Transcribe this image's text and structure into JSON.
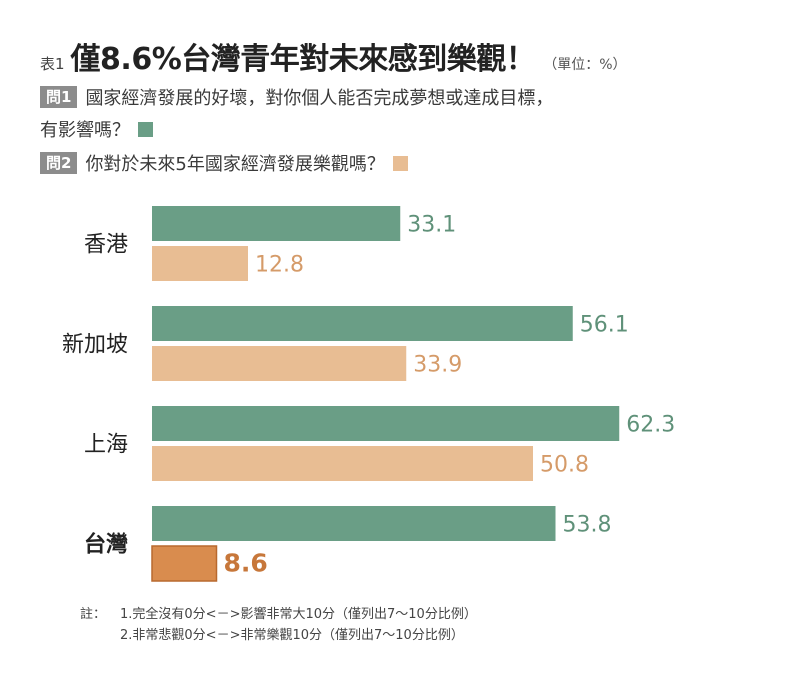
{
  "header": {
    "table_label": "表1",
    "title": "僅8.6%台灣青年對未來感到樂觀！",
    "unit": "（單位：%）"
  },
  "questions": [
    {
      "badge": "問1",
      "lines": [
        "國家經濟發展的好壞，對你個人能否完成夢想或達成目標，",
        "有影響嗎？"
      ],
      "color": "#6a9e86"
    },
    {
      "badge": "問2",
      "lines": [
        "你對於未來5年國家經濟發展樂觀嗎？"
      ],
      "color": "#e8bd93"
    }
  ],
  "chart_data": {
    "type": "bar",
    "orientation": "horizontal",
    "categories": [
      "香港",
      "新加坡",
      "上海",
      "台灣"
    ],
    "series": [
      {
        "name": "問1",
        "values": [
          33.1,
          56.1,
          62.3,
          53.8
        ],
        "color": "#6a9e86"
      },
      {
        "name": "問2",
        "values": [
          12.8,
          33.9,
          50.8,
          8.6
        ],
        "color": "#e8bd93"
      }
    ],
    "highlight": {
      "category": "台灣",
      "series": "問2",
      "color": "#d98c4e",
      "label_color": "#c7773a"
    },
    "value_label_colors": {
      "問1": "#5f9179",
      "問2": "#d59b69"
    },
    "xlim": [
      0,
      100
    ],
    "xlabel": "",
    "ylabel": "",
    "grid": false,
    "title": ""
  },
  "notes": {
    "prefix": "註：",
    "lines": [
      "1.完全沒有0分<－>影響非常大10分（僅列出7～10分比例）",
      "2.非常悲觀0分<－>非常樂觀10分（僅列出7～10分比例）"
    ]
  }
}
